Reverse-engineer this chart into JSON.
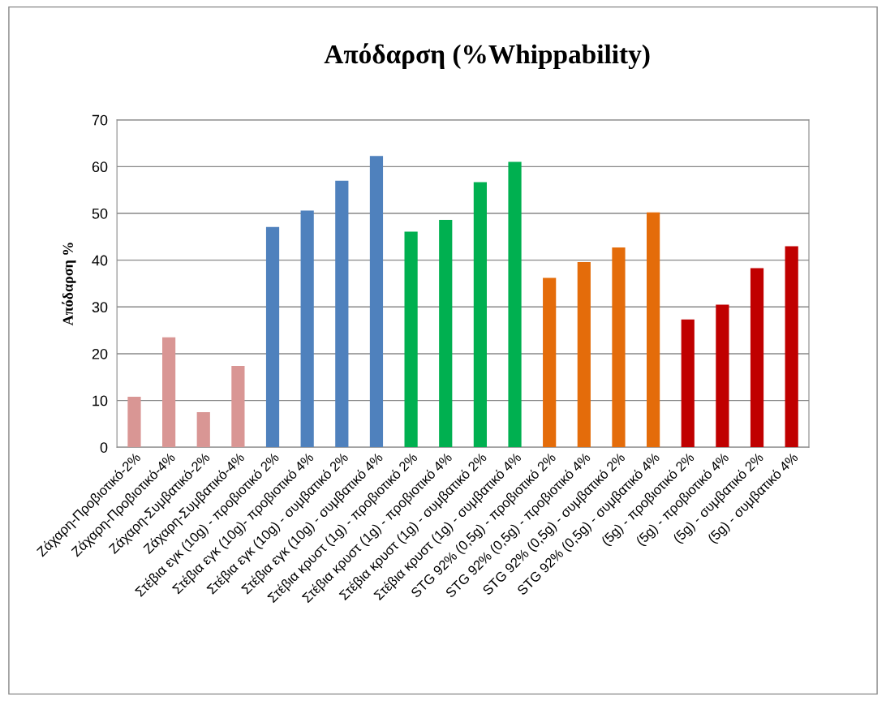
{
  "chart_data": {
    "type": "bar",
    "title": "Απόδαρση (%Whippability)",
    "ylabel": "Απόδαρση %",
    "categories": [
      "Ζάχαρη-Προβιοτικό-2%",
      "Ζάχαρη-Προβιοτικό-4%",
      "Ζάχαρη-Συμβατικό-2%",
      "Ζάχαρη-Συμβατικό-4%",
      "Στέβια εγκ (10g) - προβιοτικό 2%",
      "Στέβια εγκ (10g)- προβιοτικό 4%",
      "Στέβια εγκ (10g) - συμβατικό 2%",
      "Στέβια εγκ (10g) - συμβατικό 4%",
      "Στέβια κρυστ (1g) - προβιοτικό 2%",
      "Στέβια κρυστ (1g) - προβιοτικό 4%",
      "Στέβια κρυστ (1g) - συμβατικό 2%",
      "Στέβια κρυστ (1g) - συμβατικό 4%",
      "STG 92% (0,5g) - προβιοτικό 2%",
      "STG 92% (0,5g) - προβιοτικό 4%",
      "STG 92% (0,5g) - συμβατικό 2%",
      "STG 92% (0,5g) - συμβατικό 4%",
      "(5g) - προβιοτικό 2%",
      "(5g) - προβιοτικό 4%",
      "(5g) - συμβατικό 2%",
      "(5g) - συμβατικό 4%"
    ],
    "values": [
      10.8,
      23.5,
      7.5,
      17.4,
      47.1,
      50.6,
      57.0,
      62.3,
      46.1,
      48.6,
      56.7,
      61.0,
      36.2,
      39.6,
      42.7,
      50.2,
      27.3,
      30.5,
      38.3,
      43.0
    ],
    "colors": [
      "#d99694",
      "#d99694",
      "#d99694",
      "#d99694",
      "#4f81bd",
      "#4f81bd",
      "#4f81bd",
      "#4f81bd",
      "#00b050",
      "#00b050",
      "#00b050",
      "#00b050",
      "#e46c0a",
      "#e46c0a",
      "#e46c0a",
      "#e46c0a",
      "#c00000",
      "#c00000",
      "#c00000",
      "#c00000"
    ],
    "ylim": [
      0,
      70
    ],
    "yticks": [
      0,
      10,
      20,
      30,
      40,
      50,
      60,
      70
    ],
    "grid": "y",
    "legend": false
  }
}
